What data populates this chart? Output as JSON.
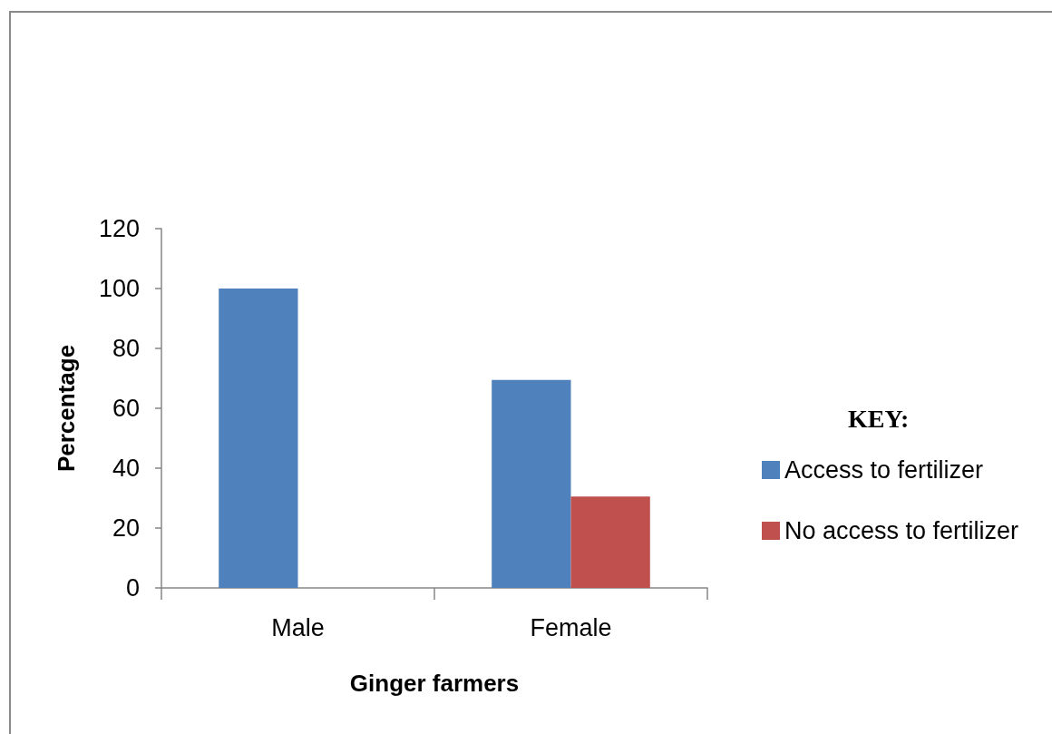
{
  "chart_data": {
    "type": "bar",
    "xlabel": "Ginger farmers",
    "ylabel": "Percentage",
    "legend_title": "KEY:",
    "categories": [
      "Male",
      "Female"
    ],
    "series": [
      {
        "name": "Access to fertilizer",
        "color": "#4f81bd",
        "values": [
          100,
          69.5
        ]
      },
      {
        "name": "No access to fertilizer",
        "color": "#c0504d",
        "values": [
          0,
          30.5
        ]
      }
    ],
    "ylim": [
      0,
      120
    ],
    "yticks": [
      0,
      20,
      40,
      60,
      80,
      100,
      120
    ],
    "grid": false,
    "legend": "right"
  }
}
